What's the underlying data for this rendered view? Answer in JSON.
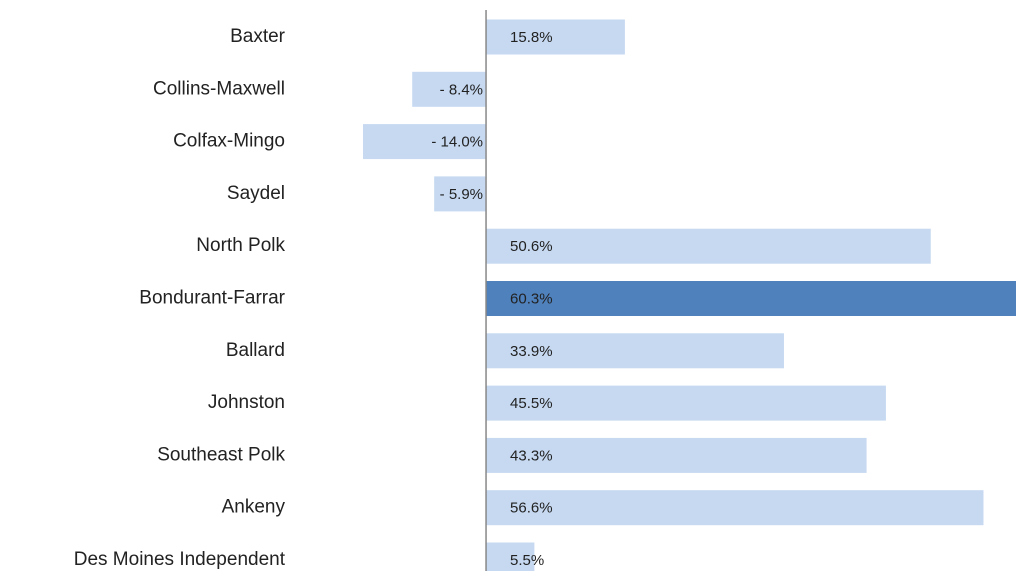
{
  "chart_data": {
    "type": "bar",
    "orientation": "horizontal",
    "categories": [
      "Baxter",
      "Collins-Maxwell",
      "Colfax-Mingo",
      "Saydel",
      "North Polk",
      "Bondurant-Farrar",
      "Ballard",
      "Johnston",
      "Southeast Polk",
      "Ankeny",
      "Des Moines Independent"
    ],
    "values": [
      15.8,
      -8.4,
      -14.0,
      -5.9,
      50.6,
      60.3,
      33.9,
      45.5,
      43.3,
      56.6,
      5.5
    ],
    "value_labels": [
      "15.8%",
      "- 8.4%",
      "- 14.0%",
      "- 5.9%",
      "50.6%",
      "60.3%",
      "33.9%",
      "45.5%",
      "43.3%",
      "56.6%",
      "5.5%"
    ],
    "colors": [
      "#c6d9f1",
      "#c6d9f1",
      "#c6d9f1",
      "#c6d9f1",
      "#c6d9f1",
      "#4f81bd",
      "#c6d9f1",
      "#c6d9f1",
      "#c6d9f1",
      "#c6d9f1",
      "#c6d9f1"
    ]
  }
}
